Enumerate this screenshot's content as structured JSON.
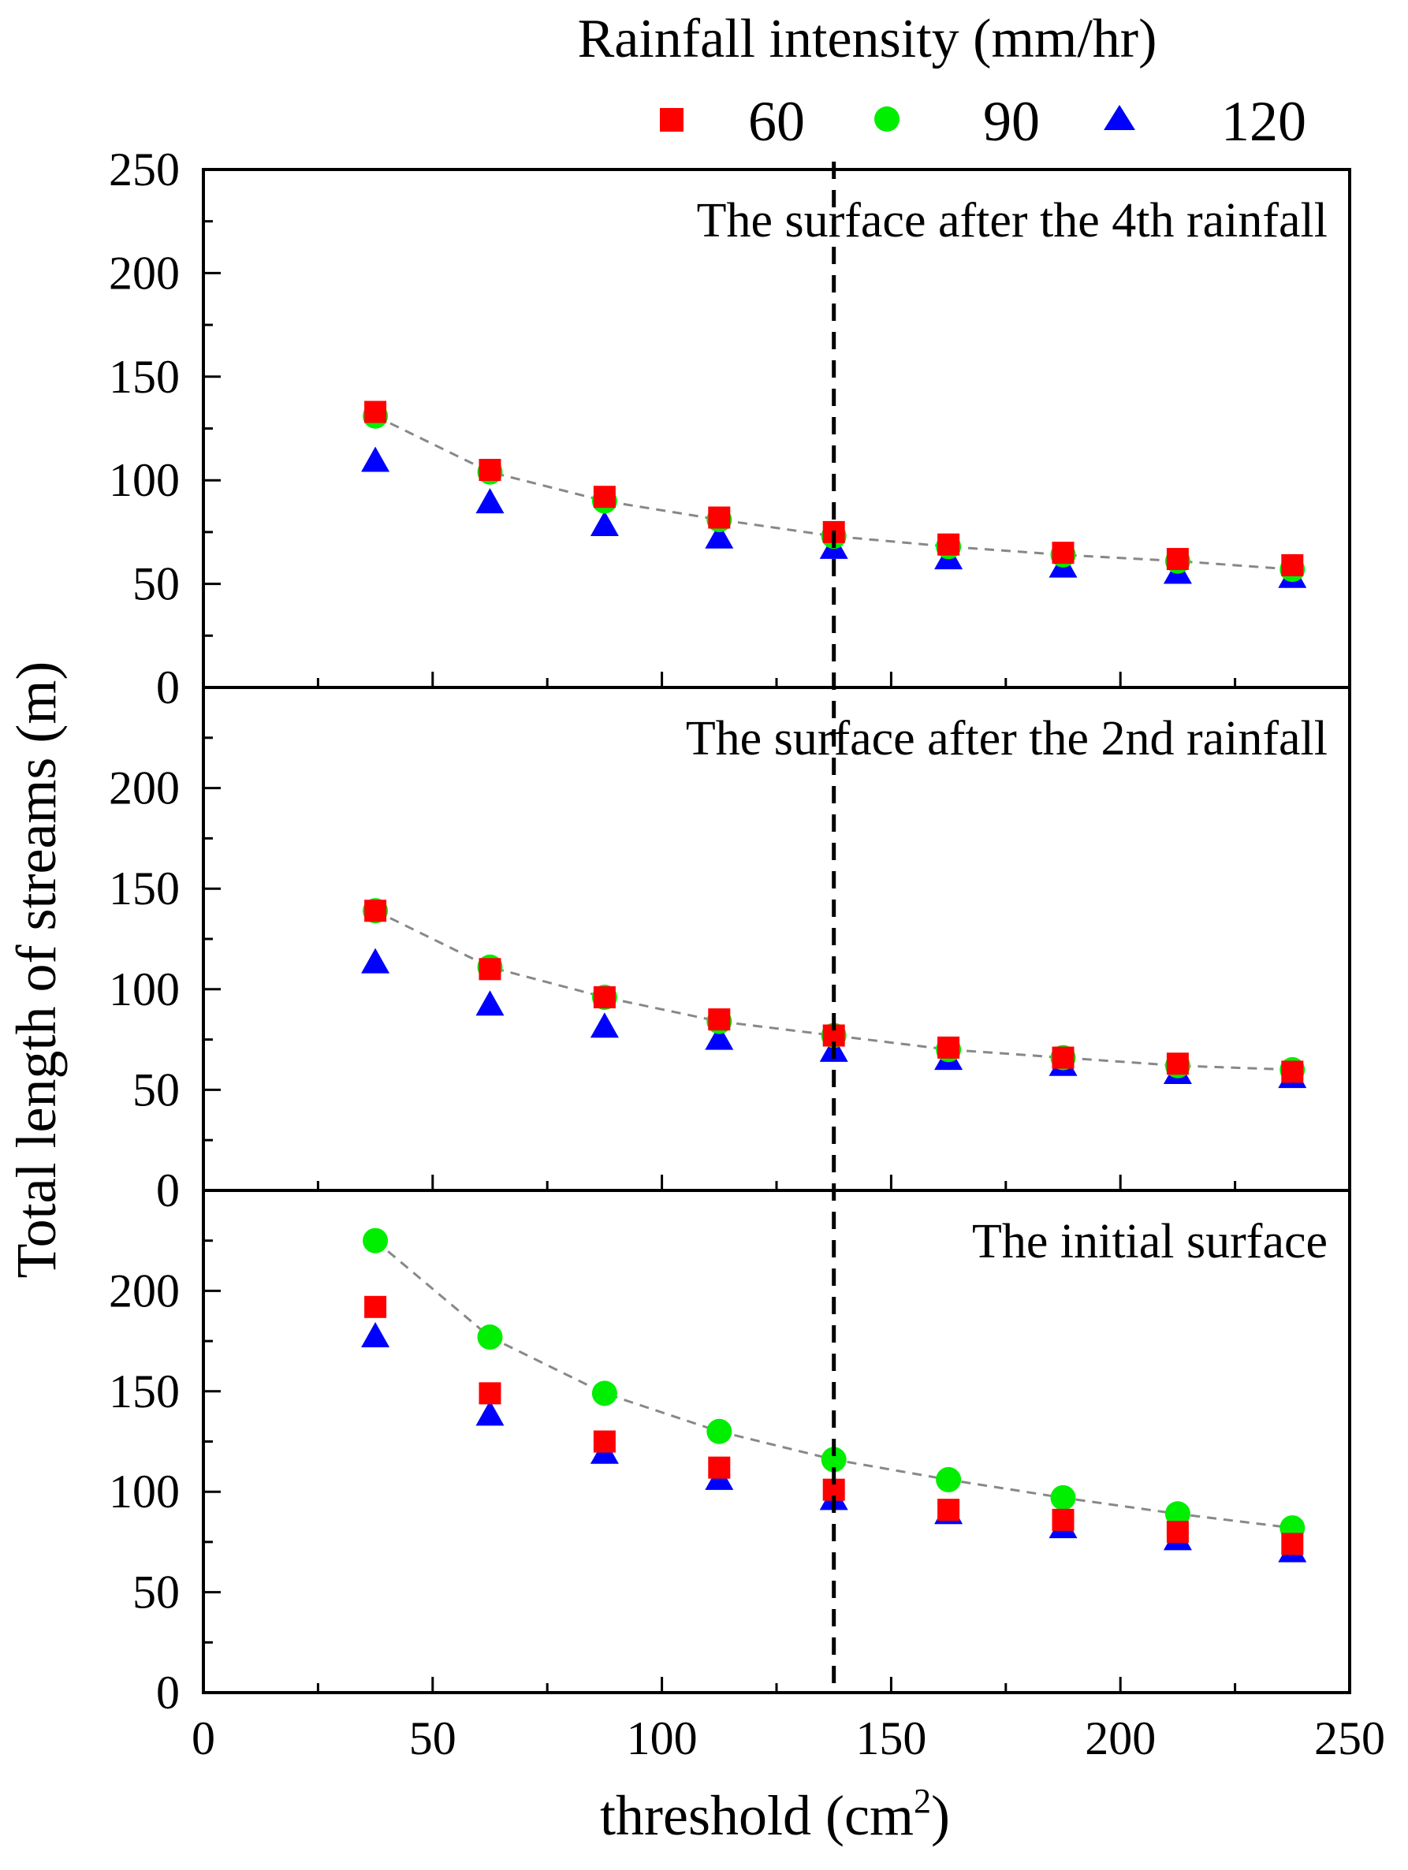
{
  "chart_data": {
    "type": "scatter",
    "layout": "three vertically stacked panels sharing x axis",
    "legend": {
      "title": "Rainfall intensity (mm/hr)",
      "placement": "top"
    },
    "series_meta": [
      {
        "name": "60",
        "marker": "square",
        "color": "#ff0000"
      },
      {
        "name": "90",
        "marker": "circle",
        "color": "#00ee00"
      },
      {
        "name": "120",
        "marker": "triangle",
        "color": "#0000ff"
      }
    ],
    "xlabel": "threshold (cm",
    "xlabel_sup": "2",
    "xlabel_end": ")",
    "ylabel": "Total length of streams (m)",
    "xlim": [
      0,
      250
    ],
    "x_ticks": [
      0,
      50,
      100,
      150,
      200,
      250
    ],
    "reference_line_x": 137.5,
    "x": [
      37.5,
      62.5,
      87.5,
      112.5,
      137.5,
      162.5,
      187.5,
      212.5,
      237.5
    ],
    "panels": [
      {
        "label": "The surface after the 4th rainfall",
        "ylim": [
          0,
          250
        ],
        "y_ticks": [
          0,
          50,
          100,
          150,
          200,
          250
        ],
        "series": [
          {
            "name": "60",
            "values": [
              133,
              105,
              92,
              82,
              75,
              69,
              65,
              62,
              59
            ]
          },
          {
            "name": "90",
            "values": [
              131,
              104,
              90,
              81,
              73,
              68,
              64,
              61,
              57
            ]
          },
          {
            "name": "120",
            "values": [
              109,
              89,
              78,
              72,
              67,
              62,
              58,
              55,
              53
            ]
          }
        ],
        "fit_line": [
          131,
          104,
          90,
          81,
          73,
          68,
          64,
          61,
          57
        ]
      },
      {
        "label": "The surface after the 2nd rainfall",
        "ylim": [
          0,
          250
        ],
        "y_ticks": [
          0,
          50,
          100,
          150,
          200
        ],
        "series": [
          {
            "name": "60",
            "values": [
              139,
              110,
              96,
              85,
              77,
              71,
              66,
              63,
              59
            ]
          },
          {
            "name": "90",
            "values": [
              139,
              111,
              96,
              84,
              77,
              70,
              66,
              62,
              60
            ]
          },
          {
            "name": "120",
            "values": [
              113,
              92,
              81,
              75,
              69,
              65,
              62,
              58,
              56
            ]
          }
        ],
        "fit_line": [
          139,
          111,
          96,
          84,
          77,
          70,
          66,
          62,
          60
        ]
      },
      {
        "label": "The initial surface",
        "ylim": [
          0,
          250
        ],
        "y_ticks": [
          0,
          50,
          100,
          150,
          200
        ],
        "series": [
          {
            "name": "60",
            "values": [
              192,
              149,
              125,
              112,
              101,
              91,
              86,
              80,
              74
            ]
          },
          {
            "name": "90",
            "values": [
              225,
              177,
              149,
              130,
              116,
              106,
              97,
              89,
              82
            ]
          },
          {
            "name": "120",
            "values": [
              177,
              138,
              119,
              106,
              96,
              89,
              82,
              76,
              70
            ]
          }
        ],
        "fit_line": [
          225,
          177,
          149,
          130,
          116,
          106,
          97,
          89,
          82
        ]
      }
    ]
  }
}
